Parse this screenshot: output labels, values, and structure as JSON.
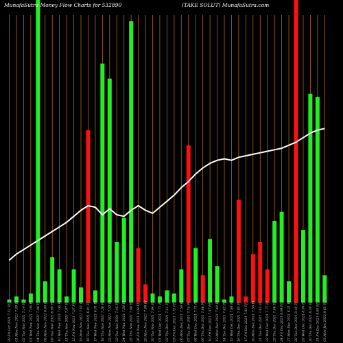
{
  "chart_data": {
    "type": "bar",
    "title_left": "MunafaSutra  Money Flow  Charts for 532890",
    "title_right": "(TAKE SOLUT) MunafaSutra.com",
    "ylim": [
      0,
      100
    ],
    "categories": [
      "29 Fri Oct 2021 7.51 Ff",
      "01 Mon Nov 2021 7.09 Ff",
      "02 Tue Nov 2021 7.14 Ff",
      "03 Wed Nov 2021 7.06 Ff",
      "04 Thu Nov 2021 7.06 Ff",
      "08 Mon Nov 2021 6.90 Ff",
      "09 Tue Nov 2021 6.90 Ff",
      "10 Wed Nov 2021 7.06 Ff",
      "11 Thu Nov 2021 7.07 Ff",
      "12 Fri Nov 2021 7.07 Ff",
      "15 Mon Nov 2021 7.01 Ff",
      "16 Tue Nov 2021 6.91 Ff",
      "17 Wed Nov 2021 6.91 Ff",
      "18 Thu Nov 2021 7.26 Ff",
      "22 Mon Nov 2021 7.32 Ff",
      "23 Tue Nov 2021 7.45 Ff",
      "24 Wed Nov 2021 7.56 Ff",
      "25 Thu Nov 2021 7.88 Ff",
      "26 Fri Nov 2021 8.08 Ff",
      "29 Mon Nov 2021 7.98 Ff",
      "30 Tue Nov 2021 7.94 Ff",
      "01 Wed Dec 2021 7.71 Ff",
      "02 Thu Dec 2021 7.41 Ff",
      "03 Fri Dec 2021 7.72 Ff",
      "06 Mon Dec 2021 7.58 Ff",
      "07 Tue Dec 2021 7.74 Ff",
      "08 Wed Dec 2021 7.75 Ff",
      "09 Thu Dec 2021 7.86 Ff",
      "10 Fri Dec 2021 7.57 Ff",
      "13 Mon Dec 2021 7.40 Ff",
      "14 Tue Dec 2021 7.63 Ff",
      "15 Wed Dec 2021 7.88 Ff",
      "16 Thu Dec 2021 7.93 Ff",
      "17 Fri Dec 2021 7.81 Ff",
      "20 Mon Dec 2021 7.58 Ff",
      "21 Tue Dec 2021 7.63 Ff",
      "22 Wed Dec 2021 7.77 Ff",
      "23 Thu Dec 2021 7.88 Ff",
      "24 Fri Dec 2021 8.04 Ff",
      "27 Mon Dec 2021 8.21 Ff",
      "28 Tue Dec 2021 8.16 Ff",
      "29 Wed Dec 2021 8.06 Ff",
      "30 Thu Dec 2021 8.30 Ff",
      "31 Fri Dec 2021 8.60 Ff",
      "03 Mon Jan 2022 8.65 Ff"
    ],
    "series": [
      {
        "kind": "bar",
        "values": [
          1,
          2,
          1,
          3,
          100,
          7,
          15,
          11,
          2,
          11,
          5,
          57,
          4,
          79,
          74,
          20,
          28,
          93,
          18,
          6,
          3,
          2,
          4,
          3,
          11,
          52,
          18,
          9,
          21,
          12,
          1,
          2,
          34,
          2,
          16,
          20,
          11,
          27,
          30,
          7,
          100,
          24,
          69,
          68,
          9
        ],
        "directions": [
          "up",
          "up",
          "up",
          "up",
          "up",
          "up",
          "up",
          "up",
          "up",
          "up",
          "up",
          "down",
          "up",
          "up",
          "up",
          "up",
          "up",
          "up",
          "down",
          "down",
          "up",
          "up",
          "up",
          "up",
          "up",
          "down",
          "up",
          "down",
          "up",
          "up",
          "up",
          "up",
          "down",
          "down",
          "down",
          "down",
          "down",
          "up",
          "up",
          "up",
          "down",
          "up",
          "up",
          "up",
          "up"
        ]
      },
      {
        "kind": "line",
        "values": [
          14,
          16,
          17.5,
          19,
          20.5,
          22,
          23.5,
          25,
          26.5,
          28.5,
          30.5,
          32,
          31.5,
          29,
          31,
          29,
          28.5,
          30.5,
          32,
          30.5,
          29.5,
          31.5,
          33.5,
          35.5,
          38,
          40,
          42.5,
          44.5,
          46,
          47,
          47.5,
          47,
          48,
          48.5,
          49,
          49.5,
          50,
          50.5,
          51,
          52,
          53,
          54.5,
          56,
          57,
          57.5
        ]
      }
    ],
    "colors": {
      "up": "#22ee22",
      "down": "#ff1010",
      "line": "#ffffff",
      "grid": "#b06a10",
      "background": "#000000"
    }
  }
}
